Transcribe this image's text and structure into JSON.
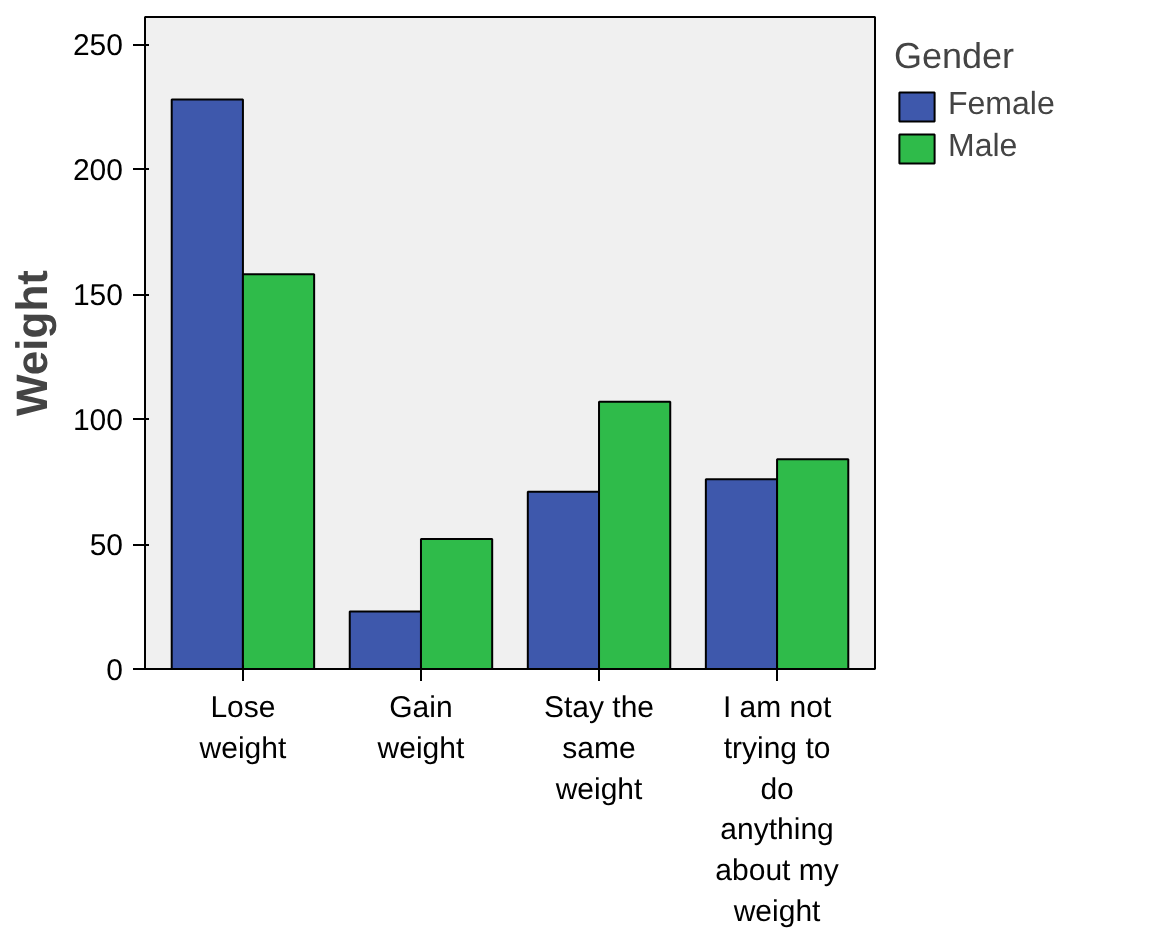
{
  "chart_data": {
    "type": "bar",
    "ylabel": "Weight",
    "legend_title": "Gender",
    "categories": [
      "Lose\nweight",
      "Gain\nweight",
      "Stay the\nsame\nweight",
      "I am not\ntrying to\ndo\nanything\nabout my\nweight"
    ],
    "series": [
      {
        "name": "Female",
        "color": "#3e58ac",
        "values": [
          228,
          23,
          71,
          76
        ]
      },
      {
        "name": "Male",
        "color": "#2fbb4a",
        "values": [
          158,
          52,
          107,
          84
        ]
      }
    ],
    "ylim": [
      0,
      261
    ],
    "yticks": [
      0,
      50,
      100,
      150,
      200,
      250
    ],
    "grid": false,
    "legend": "right"
  }
}
